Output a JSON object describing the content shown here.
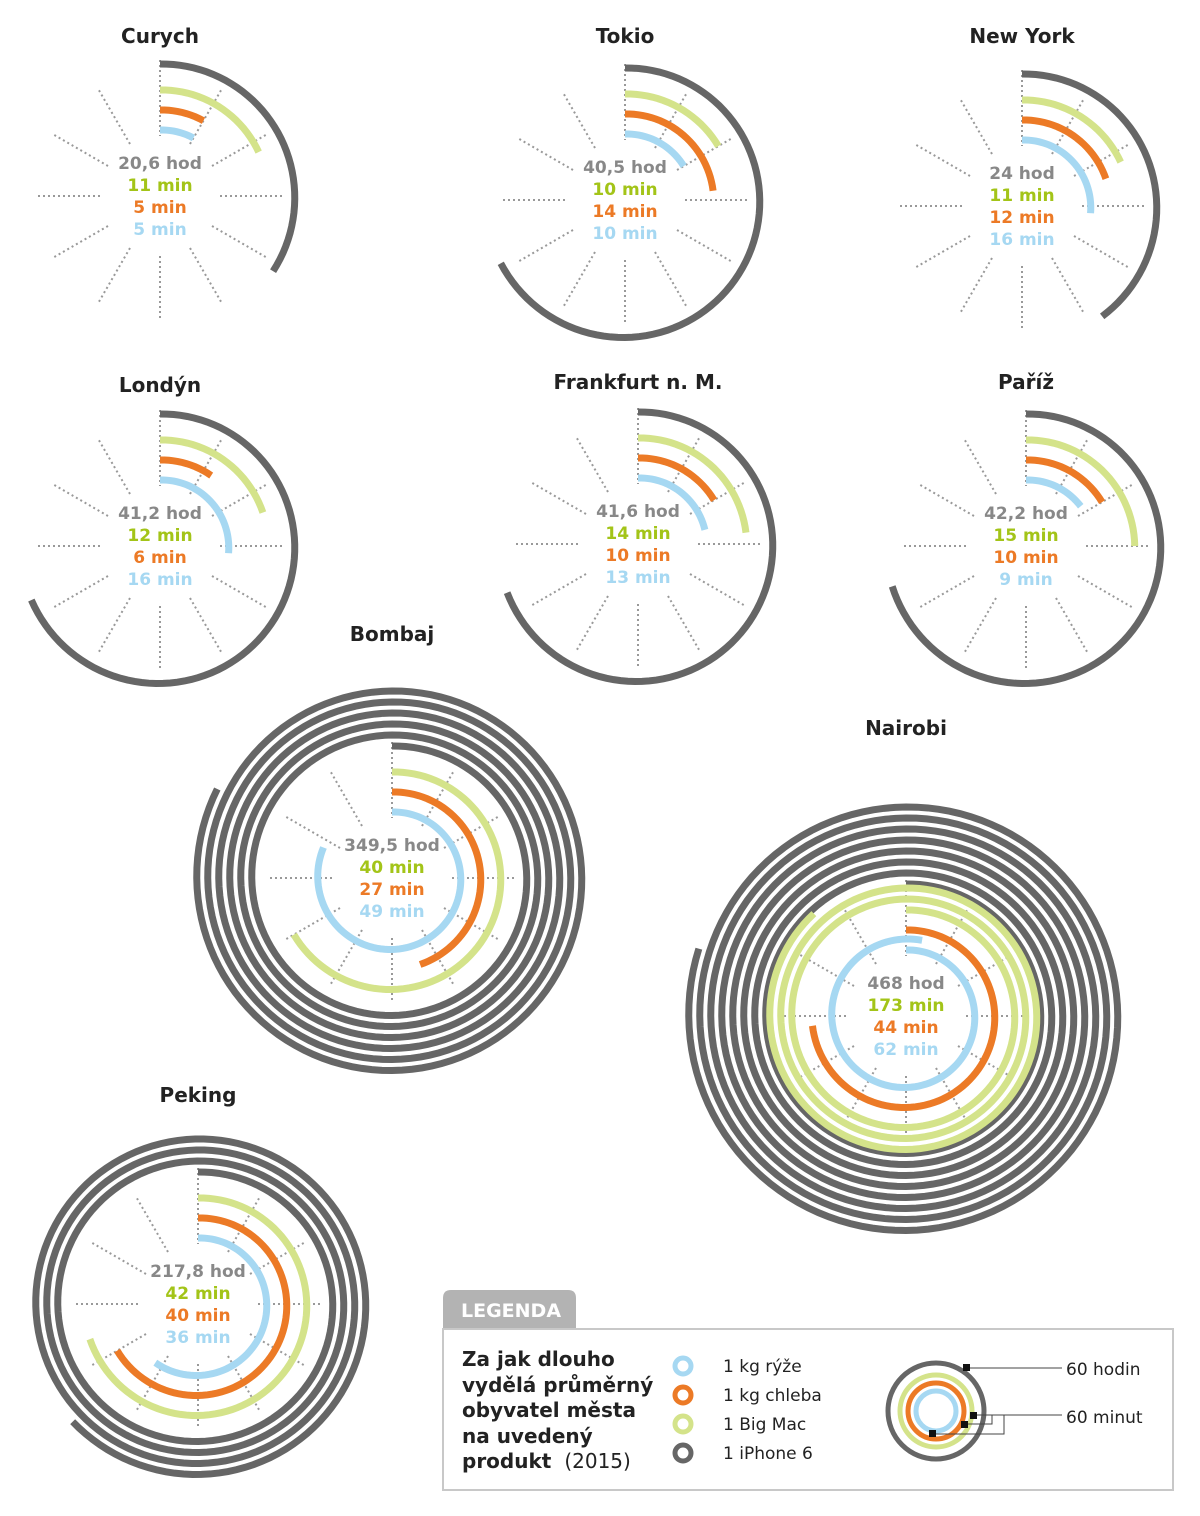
{
  "colors": {
    "rice": "#a6d8f2",
    "bread": "#ec7a26",
    "bigmac": "#d4e38a",
    "iphone": "#666666",
    "hours_text": "#888888",
    "bigmac_text": "#a3c418",
    "legend_tab": "#b3b3b3",
    "legend_border": "#c8c8c8"
  },
  "chart_data": {
    "type": "radial-spiral",
    "unit_notes": {
      "iphone_ring": "1 full turn = 60 hodin",
      "product_rings": "1 full turn = 60 minut"
    },
    "series": [
      {
        "key": "iphone",
        "name": "1 iPhone 6",
        "unit": "hod"
      },
      {
        "key": "bigmac",
        "name": "1 Big Mac",
        "unit": "min"
      },
      {
        "key": "bread",
        "name": "1 kg chleba",
        "unit": "min"
      },
      {
        "key": "rice",
        "name": "1 kg rýže",
        "unit": "min"
      }
    ],
    "cities": [
      {
        "name": "Curych",
        "iphone_hours": 20.6,
        "bigmac_min": 11,
        "bread_min": 5,
        "rice_min": 5,
        "labels": {
          "iphone": "20,6 hod",
          "bigmac": "11 min",
          "bread": "5 min",
          "rice": "5 min"
        }
      },
      {
        "name": "Tokio",
        "iphone_hours": 40.5,
        "bigmac_min": 10,
        "bread_min": 14,
        "rice_min": 10,
        "labels": {
          "iphone": "40,5 hod",
          "bigmac": "10 min",
          "bread": "14 min",
          "rice": "10 min"
        }
      },
      {
        "name": "New York",
        "iphone_hours": 24,
        "bigmac_min": 11,
        "bread_min": 12,
        "rice_min": 16,
        "labels": {
          "iphone": "24 hod",
          "bigmac": "11 min",
          "bread": "12 min",
          "rice": "16 min"
        }
      },
      {
        "name": "Londýn",
        "iphone_hours": 41.2,
        "bigmac_min": 12,
        "bread_min": 6,
        "rice_min": 16,
        "labels": {
          "iphone": "41,2 hod",
          "bigmac": "12 min",
          "bread": "6 min",
          "rice": "16 min"
        }
      },
      {
        "name": "Frankfurt n. M.",
        "iphone_hours": 41.6,
        "bigmac_min": 14,
        "bread_min": 10,
        "rice_min": 13,
        "labels": {
          "iphone": "41,6 hod",
          "bigmac": "14 min",
          "bread": "10 min",
          "rice": "13 min"
        }
      },
      {
        "name": "Paříž",
        "iphone_hours": 42.2,
        "bigmac_min": 15,
        "bread_min": 10,
        "rice_min": 9,
        "labels": {
          "iphone": "42,2 hod",
          "bigmac": "15 min",
          "bread": "10 min",
          "rice": "9 min"
        }
      },
      {
        "name": "Bombaj",
        "iphone_hours": 349.5,
        "bigmac_min": 40,
        "bread_min": 27,
        "rice_min": 49,
        "labels": {
          "iphone": "349,5 hod",
          "bigmac": "40 min",
          "bread": "27 min",
          "rice": "49 min"
        }
      },
      {
        "name": "Nairobi",
        "iphone_hours": 468,
        "bigmac_min": 173,
        "bread_min": 44,
        "rice_min": 62,
        "labels": {
          "iphone": "468 hod",
          "bigmac": "173 min",
          "bread": "44 min",
          "rice": "62 min"
        }
      },
      {
        "name": "Peking",
        "iphone_hours": 217.8,
        "bigmac_min": 42,
        "bread_min": 40,
        "rice_min": 36,
        "labels": {
          "iphone": "217,8 hod",
          "bigmac": "42 min",
          "bread": "40 min",
          "rice": "36 min"
        }
      }
    ]
  },
  "legend": {
    "tab_label": "LEGENDA",
    "description_lines": [
      "Za jak dlouho",
      "vydělá průměrný",
      "obyvatel města",
      "na uvedený",
      "produkt"
    ],
    "description_year": "(2015)",
    "items": [
      {
        "key": "rice",
        "label": "1 kg rýže"
      },
      {
        "key": "bread",
        "label": "1 kg chleba"
      },
      {
        "key": "bigmac",
        "label": "1 Big Mac"
      },
      {
        "key": "iphone",
        "label": "1 iPhone 6"
      }
    ],
    "note_hours": "60 hodin",
    "note_minutes": "60 minut"
  }
}
